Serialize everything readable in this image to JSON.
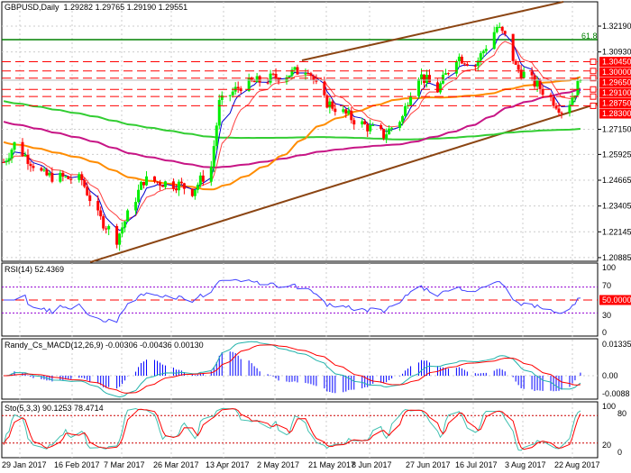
{
  "header": {
    "symbol_timeframe": "GBPUSD,Daily",
    "ohlc": "1.29282 1.29765 1.29190 1.29551"
  },
  "fib_label": "61.8",
  "colors": {
    "bull": "#00ee00",
    "bear": "#ff0000",
    "channel": "#8b4513",
    "fib": "#008000",
    "level": "#ff0000",
    "ma_slow": "#32cd32",
    "ma_mid": "#c71585",
    "ma_orange": "#ff8c00",
    "ma_red": "#ff4040",
    "ma_blue": "#0000cd",
    "macd_main": "#20b2aa",
    "macd_signal": "#ff0000",
    "macd_hist": "#0000ff",
    "rsi": "#4040ff",
    "sto_main": "#40c0b0",
    "sto_signal": "#ff0000"
  },
  "price_axis": [
    "1.32190",
    "1.30930",
    "1.27150",
    "1.25925",
    "1.24665",
    "1.23405",
    "1.22145",
    "1.20885"
  ],
  "level_labels": [
    "1.30450",
    "1.30000",
    "1.29650",
    "1.29100",
    "1.28750",
    "1.28300"
  ],
  "date_axis": [
    "29 Jan 2017",
    "16 Feb 2017",
    "7 Mar 2017",
    "26 Mar 2017",
    "13 Apr 2017",
    "2 May 2017",
    "21 May 2017",
    "8 Jun 2017",
    "27 Jun 2017",
    "16 Jul 2017",
    "3 Aug 2017",
    "22 Aug 2017"
  ],
  "rsi": {
    "title": "RSI(14) 52.4369",
    "axis": [
      "100",
      "70",
      "50.0000",
      "30",
      "0"
    ]
  },
  "macd": {
    "title": "Randy_Cs_MACD(12,26,9) -0.00306 -0.00436 0.00130",
    "axis": [
      "0.01335",
      "0.00",
      "-0.0088"
    ]
  },
  "sto": {
    "title": "Sto(5,3,3) 90.1253 78.4714",
    "axis": [
      "100",
      "80",
      "20",
      "0"
    ]
  },
  "chart_data": {
    "type": "candlestick",
    "title": "GBPUSD,Daily",
    "ylim": [
      1.20885,
      1.331
    ],
    "levels": [
      1.3045,
      1.3,
      1.2965,
      1.291,
      1.2875,
      1.283
    ],
    "last_price": 1.29551,
    "closes": [
      [
        "2017-01-23",
        1.2555
      ],
      [
        "2017-01-27",
        1.2643
      ],
      [
        "2017-02-07",
        1.2489
      ],
      [
        "2017-02-21",
        1.2467
      ],
      [
        "2017-02-27",
        1.2291
      ],
      [
        "2017-03-06",
        1.2181
      ],
      [
        "2017-03-16",
        1.2467
      ],
      [
        "2017-03-29",
        1.2445
      ],
      [
        "2017-04-03",
        1.2414
      ],
      [
        "2017-04-10",
        1.2533
      ],
      [
        "2017-04-13",
        1.2841
      ],
      [
        "2017-04-21",
        1.2929
      ],
      [
        "2017-05-01",
        1.2959
      ],
      [
        "2017-05-11",
        1.2995
      ],
      [
        "2017-05-16",
        1.3017
      ],
      [
        "2017-05-21",
        1.2863
      ],
      [
        "2017-06-03",
        1.2753
      ],
      [
        "2017-06-13",
        1.2687
      ],
      [
        "2017-06-20",
        1.2775
      ],
      [
        "2017-06-25",
        1.2995
      ],
      [
        "2017-07-03",
        1.2907
      ],
      [
        "2017-07-10",
        1.3074
      ],
      [
        "2017-07-17",
        1.303
      ],
      [
        "2017-07-25",
        1.3215
      ],
      [
        "2017-07-29",
        1.3149
      ],
      [
        "2017-08-01",
        1.3017
      ],
      [
        "2017-08-09",
        1.2929
      ],
      [
        "2017-08-16",
        1.2841
      ],
      [
        "2017-08-19",
        1.2797
      ],
      [
        "2017-08-25",
        1.29551
      ]
    ]
  }
}
